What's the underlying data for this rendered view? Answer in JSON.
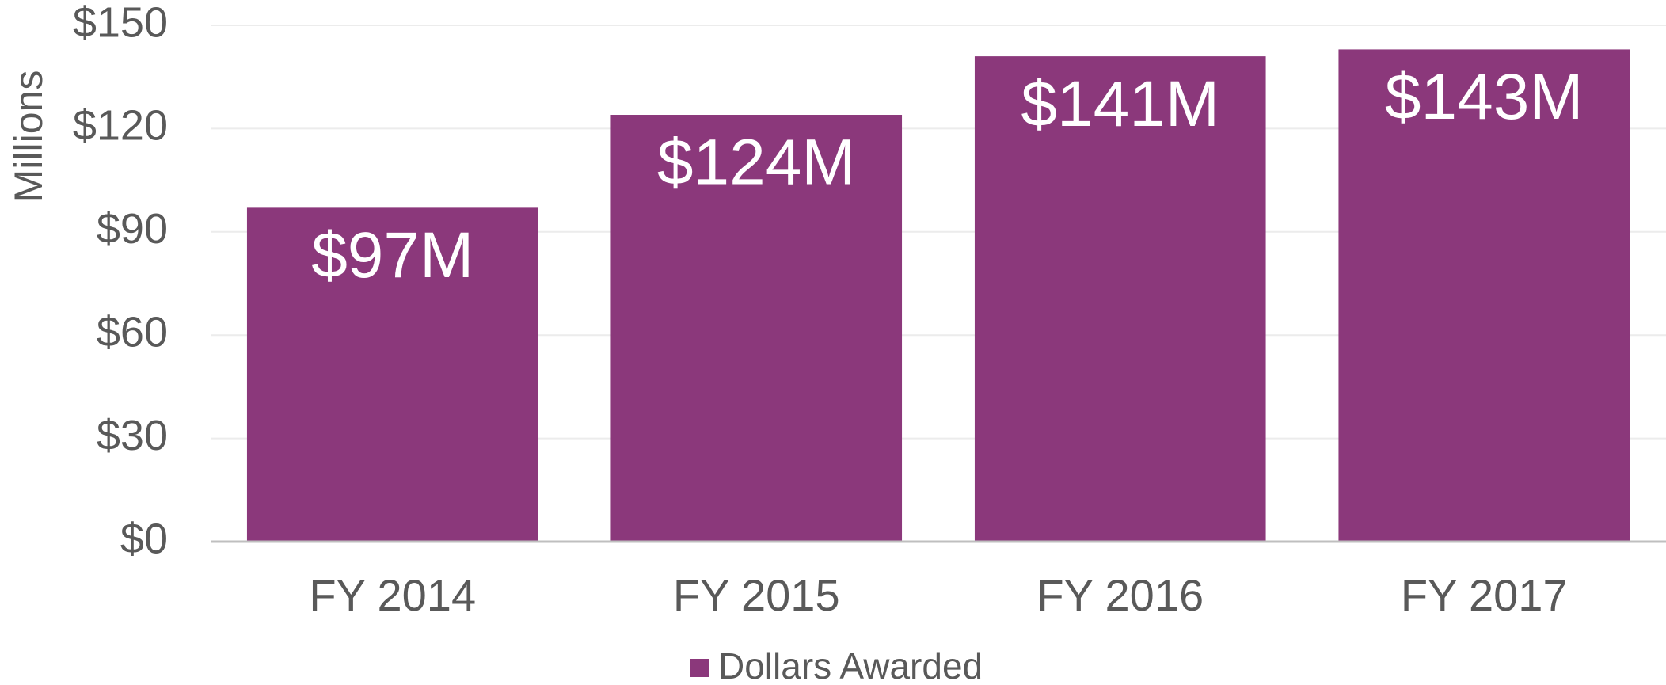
{
  "chart_data": {
    "type": "bar",
    "y_axis_label": "Millions",
    "categories": [
      "FY 2014",
      "FY 2015",
      "FY 2016",
      "FY 2017"
    ],
    "series": [
      {
        "name": "Dollars Awarded",
        "color": "#8b387b",
        "values": [
          97,
          124,
          141,
          143
        ],
        "value_labels": [
          "$97M",
          "$124M",
          "$141M",
          "$143M"
        ]
      }
    ],
    "ylim": [
      0,
      150
    ],
    "yticks": [
      {
        "value": 0,
        "label": "$0"
      },
      {
        "value": 30,
        "label": "$30"
      },
      {
        "value": 60,
        "label": "$60"
      },
      {
        "value": 90,
        "label": "$90"
      },
      {
        "value": 120,
        "label": "$120"
      },
      {
        "value": 150,
        "label": "$150"
      }
    ],
    "grid": true,
    "legend": "bottom"
  }
}
